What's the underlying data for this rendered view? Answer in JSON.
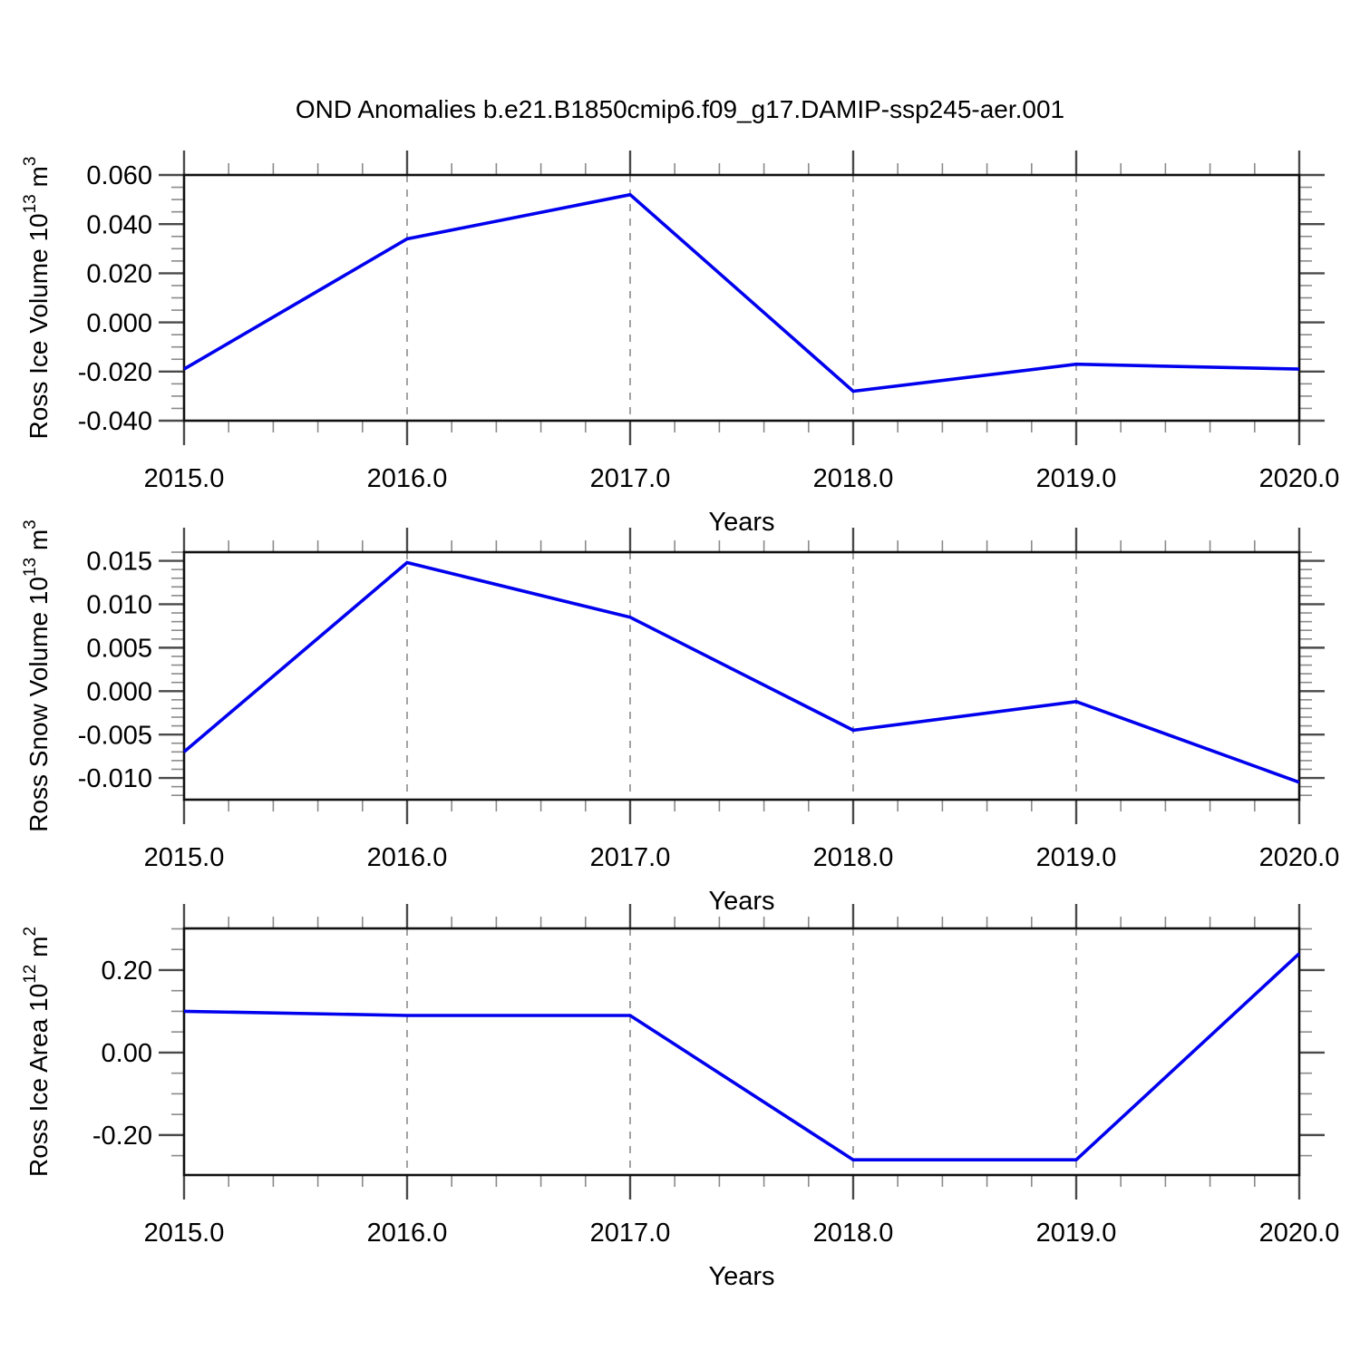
{
  "page": {
    "title": "OND Anomalies b.e21.B1850cmip6.f09_g17.DAMIP-ssp245-aer.001"
  },
  "style": {
    "line_color": "#0000ee",
    "axis_color": "#111111",
    "major_tick_color": "#4a4a4a",
    "minor_tick_color": "#8a8a8a",
    "grid_color": "#8c8c8c",
    "background": "#ffffff",
    "text_color": "#000000"
  },
  "x_axis": {
    "label": "Years",
    "range": [
      2015,
      2020
    ],
    "minor_step": 0.2,
    "gridlines": [
      2016,
      2017,
      2018,
      2019
    ],
    "ticks": [
      {
        "v": 2015,
        "label": "2015.0"
      },
      {
        "v": 2016,
        "label": "2016.0"
      },
      {
        "v": 2017,
        "label": "2017.0"
      },
      {
        "v": 2018,
        "label": "2018.0"
      },
      {
        "v": 2019,
        "label": "2019.0"
      },
      {
        "v": 2020,
        "label": "2020.0"
      }
    ]
  },
  "chart_data": [
    {
      "type": "line",
      "name": "ross-ice-volume",
      "title": "OND Anomalies b.e21.B1850cmip6.f09_g17.DAMIP-ssp245-aer.001",
      "xlabel": "Years",
      "ylabel": "Ross Ice Volume 10¹³ m³",
      "ylabel_parts": [
        {
          "text": "Ross Ice Volume 10"
        },
        {
          "text": "13",
          "sup": true
        },
        {
          "text": " m"
        },
        {
          "text": "3",
          "sup": true
        }
      ],
      "x": [
        2015,
        2016,
        2017,
        2018,
        2019,
        2020
      ],
      "y": [
        -0.019,
        0.034,
        0.052,
        -0.028,
        -0.017,
        -0.019
      ],
      "ylim": [
        -0.04,
        0.06
      ],
      "y_minor_step": 0.005,
      "grid": false,
      "yticks": [
        {
          "v": 0.06,
          "label": "0.060"
        },
        {
          "v": 0.04,
          "label": "0.040"
        },
        {
          "v": 0.02,
          "label": "0.020"
        },
        {
          "v": 0.0,
          "label": "0.000"
        },
        {
          "v": -0.02,
          "label": "-0.020"
        },
        {
          "v": -0.04,
          "label": "-0.040"
        }
      ]
    },
    {
      "type": "line",
      "name": "ross-snow-volume",
      "xlabel": "Years",
      "ylabel": "Ross Snow Volume 10¹³ m³",
      "ylabel_parts": [
        {
          "text": "Ross Snow Volume 10"
        },
        {
          "text": "13",
          "sup": true
        },
        {
          "text": " m"
        },
        {
          "text": "3",
          "sup": true
        }
      ],
      "x": [
        2015,
        2016,
        2017,
        2018,
        2019,
        2020
      ],
      "y": [
        -0.007,
        0.0148,
        0.0085,
        -0.0045,
        -0.0012,
        -0.0105
      ],
      "ylim": [
        -0.0125,
        0.016
      ],
      "y_minor_step": 0.001,
      "grid": false,
      "yticks": [
        {
          "v": 0.015,
          "label": "0.015"
        },
        {
          "v": 0.01,
          "label": "0.010"
        },
        {
          "v": 0.005,
          "label": "0.005"
        },
        {
          "v": 0.0,
          "label": "0.000"
        },
        {
          "v": -0.005,
          "label": "-0.005"
        },
        {
          "v": -0.01,
          "label": "-0.010"
        }
      ]
    },
    {
      "type": "line",
      "name": "ross-ice-area",
      "xlabel": "Years",
      "ylabel": "Ross Ice Area 10¹² m²",
      "ylabel_parts": [
        {
          "text": "Ross Ice Area 10"
        },
        {
          "text": "12",
          "sup": true
        },
        {
          "text": " m"
        },
        {
          "text": "2",
          "sup": true
        }
      ],
      "x": [
        2015,
        2016,
        2017,
        2018,
        2019,
        2020
      ],
      "y": [
        0.1,
        0.09,
        0.09,
        -0.26,
        -0.26,
        0.24
      ],
      "ylim": [
        -0.297,
        0.301
      ],
      "y_minor_step": 0.05,
      "grid": false,
      "yticks": [
        {
          "v": 0.2,
          "label": "0.20"
        },
        {
          "v": 0.0,
          "label": "0.00"
        },
        {
          "v": -0.2,
          "label": "-0.20"
        }
      ]
    }
  ]
}
